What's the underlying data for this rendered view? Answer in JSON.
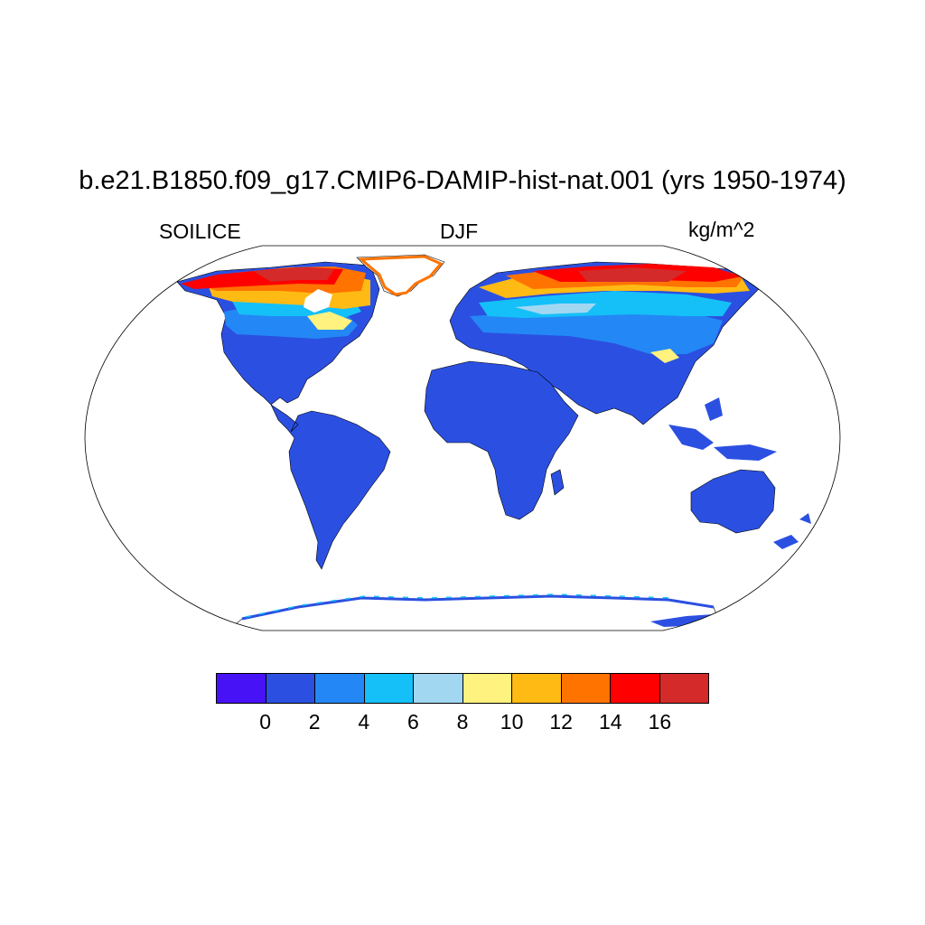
{
  "title": "b.e21.B1850.f09_g17.CMIP6-DAMIP-hist-nat.001 (yrs 1950-1974)",
  "variable": "SOILICE",
  "season": "DJF",
  "units": "kg/m^2",
  "colorbar": {
    "colors": [
      "#4812F6",
      "#2B50E1",
      "#2388F5",
      "#15C0F8",
      "#A2D7F2",
      "#FFF27E",
      "#FFBA14",
      "#FF7300",
      "#FF0000",
      "#D42A2A"
    ],
    "labels": [
      "0",
      "2",
      "4",
      "6",
      "8",
      "10",
      "12",
      "14",
      "16"
    ]
  },
  "map": {
    "projection": "Robinson",
    "ocean_color": "#FFFFFF",
    "land_base_color": "#2B50E1"
  }
}
